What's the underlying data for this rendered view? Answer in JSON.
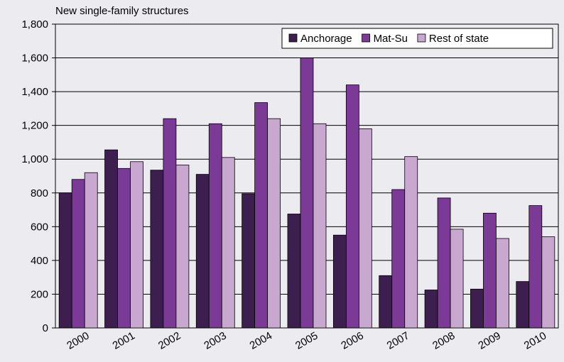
{
  "chart_data": {
    "type": "bar",
    "y_label": "New single-family structures",
    "categories": [
      "2000",
      "2001",
      "2002",
      "2003",
      "2004",
      "2005",
      "2006",
      "2007",
      "2008",
      "2009",
      "2010"
    ],
    "series": [
      {
        "name": "Anchorage",
        "color": "#3d1f4f",
        "values": [
          800,
          1055,
          935,
          910,
          795,
          675,
          550,
          310,
          225,
          230,
          275
        ]
      },
      {
        "name": "Mat-Su",
        "color": "#7b3a96",
        "values": [
          880,
          945,
          1240,
          1210,
          1335,
          1600,
          1440,
          820,
          770,
          680,
          725
        ]
      },
      {
        "name": "Rest of state",
        "color": "#c9a8d0",
        "values": [
          920,
          985,
          965,
          1010,
          1240,
          1210,
          1180,
          1015,
          585,
          530,
          540
        ]
      }
    ],
    "ylim": [
      0,
      1800
    ],
    "yticks": [
      0,
      200,
      400,
      600,
      800,
      {
        "value": 1000,
        "label": "1,000"
      },
      {
        "value": 1200,
        "label": "1,200"
      },
      {
        "value": 1400,
        "label": "1,400"
      },
      {
        "value": 1600,
        "label": "1,600"
      },
      {
        "value": 1800,
        "label": "1,800"
      }
    ],
    "grid": true,
    "legend": "top-right"
  }
}
